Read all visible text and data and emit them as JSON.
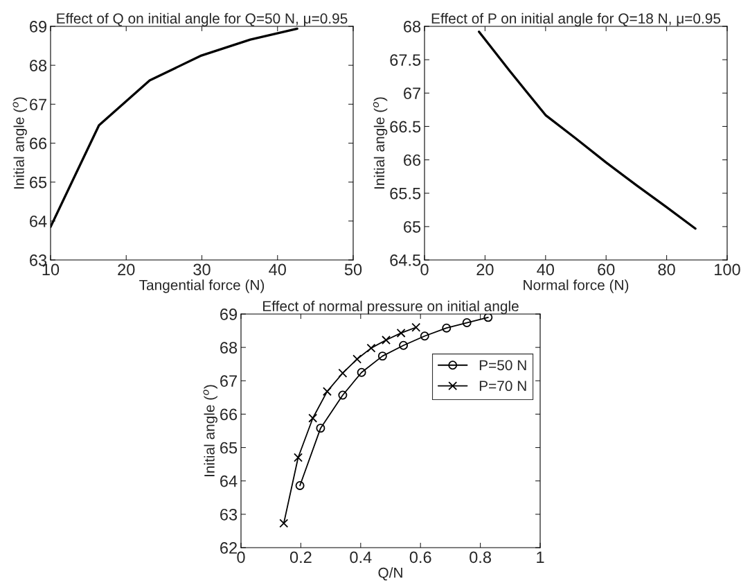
{
  "chart_data": [
    {
      "type": "line",
      "title": "Effect of Q on initial angle for Q=50 N, μ=0.95",
      "xlabel": "Tangential force (N)",
      "ylabel": "Initial angle ($^{o}$)",
      "xlim": [
        10,
        50
      ],
      "xticks": [
        10,
        20,
        30,
        40,
        50
      ],
      "ylim": [
        63,
        69
      ],
      "yticks": [
        63,
        64,
        65,
        66,
        67,
        68,
        69
      ],
      "grid": false,
      "legend": false,
      "series": [
        {
          "color": "#000000",
          "x": [
            10,
            16.4,
            23.1,
            29.8,
            36.4,
            42.6
          ],
          "values": [
            63.85,
            66.46,
            67.61,
            68.24,
            68.66,
            68.94
          ]
        }
      ]
    },
    {
      "type": "line",
      "title": "Effect of P on initial angle for Q=18 N, μ=0.95",
      "xlabel": "Normal force (N)",
      "ylabel": "Initial angle ($^{o}$)",
      "xlim": [
        0,
        100
      ],
      "xticks": [
        0,
        20,
        40,
        60,
        80,
        100
      ],
      "ylim": [
        64.5,
        68
      ],
      "yticks": [
        64.5,
        65,
        65.5,
        66,
        66.5,
        67,
        67.5,
        68
      ],
      "grid": false,
      "legend": false,
      "series": [
        {
          "color": "#000000",
          "x": [
            18,
            28,
            40,
            50,
            60,
            70,
            80,
            89.5
          ],
          "values": [
            67.92,
            67.34,
            66.67,
            66.32,
            65.96,
            65.62,
            65.29,
            64.97
          ]
        }
      ]
    },
    {
      "type": "line",
      "title": "Effect of normal pressure on initial angle",
      "xlabel": "Q/N",
      "ylabel": "Initial angle ($^{o}$)",
      "xlim": [
        0,
        1
      ],
      "xticks": [
        0,
        0.2,
        0.4,
        0.6,
        0.8,
        1
      ],
      "ylim": [
        62,
        69
      ],
      "yticks": [
        62,
        63,
        64,
        65,
        66,
        67,
        68,
        69
      ],
      "grid": false,
      "legend": "top right",
      "series": [
        {
          "name": "P=50 N",
          "color": "#000000",
          "marker": "circle",
          "x": [
            0.197,
            0.266,
            0.34,
            0.403,
            0.473,
            0.543,
            0.614,
            0.687,
            0.755,
            0.826
          ],
          "values": [
            63.86,
            65.58,
            66.57,
            67.25,
            67.74,
            68.06,
            68.34,
            68.58,
            68.74,
            68.9
          ]
        },
        {
          "name": "P=70 N",
          "color": "#000000",
          "marker": "cross",
          "x": [
            0.143,
            0.191,
            0.24,
            0.288,
            0.34,
            0.388,
            0.435,
            0.485,
            0.535,
            0.585
          ],
          "values": [
            62.73,
            64.7,
            65.88,
            66.68,
            67.23,
            67.65,
            67.98,
            68.22,
            68.43,
            68.6
          ]
        }
      ]
    }
  ]
}
